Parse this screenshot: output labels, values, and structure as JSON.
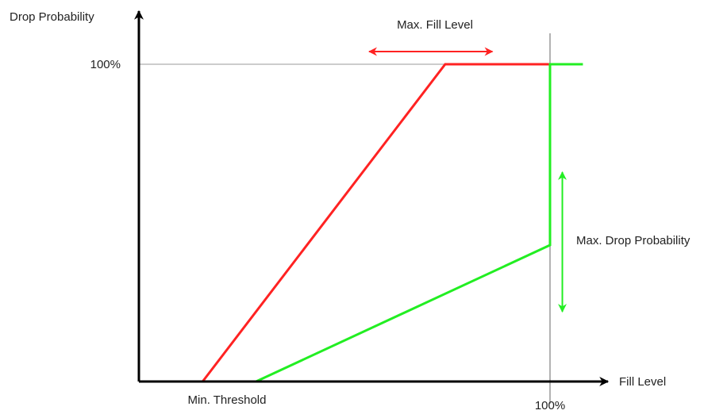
{
  "chart_data": {
    "type": "line",
    "ylabel": "Drop Probability",
    "xlabel": "Fill Level",
    "x_ticks": [
      {
        "value": 100,
        "label": "100%"
      }
    ],
    "y_ticks": [
      {
        "value": 100,
        "label": "100%"
      }
    ],
    "xlim": [
      0,
      107
    ],
    "ylim": [
      0,
      100
    ],
    "grid": false,
    "series": [
      {
        "color": "#ff2222",
        "points": [
          [
            0,
            0
          ],
          [
            15.5,
            0
          ],
          [
            74.5,
            100
          ],
          [
            100,
            100
          ]
        ]
      },
      {
        "color": "#22ee22",
        "points": [
          [
            0,
            0
          ],
          [
            28.5,
            0
          ],
          [
            100,
            43
          ],
          [
            100,
            100
          ],
          [
            108,
            100
          ]
        ]
      }
    ],
    "annotations": {
      "min_threshold": {
        "text": "Min. Threshold",
        "x": 15.5
      },
      "max_fill_level": {
        "text": "Max. Fill Level",
        "color": "#ff2222",
        "x_range": [
          56,
          86
        ],
        "y": 104
      },
      "max_drop_probability": {
        "text": "Max. Drop Probability",
        "color": "#22ee22",
        "x": 103,
        "y_range": [
          22,
          66
        ]
      }
    },
    "colors": {
      "axis": "#000000",
      "reference": "#999999",
      "text": "#222222"
    }
  }
}
